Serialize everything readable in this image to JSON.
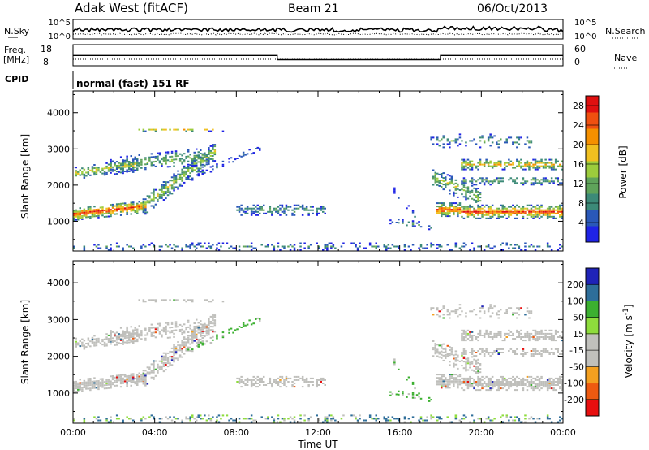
{
  "header": {
    "station": "Adak West (fitACF)",
    "beam": "Beam 21",
    "date": "06/Oct/2013"
  },
  "strip_labels": {
    "nsky": "N.Sky",
    "nsearch": "N.Search",
    "freq_line1": "Freq.",
    "freq_line2": "[MHz]",
    "nave": "Nave",
    "cpid": "CPID",
    "cpid_value": "normal (fast) 151 RF"
  },
  "colors": {
    "power_scale": [
      "#1f23e6",
      "#2a58b8",
      "#3c8a78",
      "#5fa35a",
      "#9ccc3c",
      "#f0c020",
      "#f59000",
      "#f05010",
      "#e01010"
    ],
    "velocity_scale": [
      "#e80f0f",
      "#ee5a10",
      "#f4a020",
      "#c0c0bc",
      "#c0c0bc",
      "#8edc3c",
      "#3cb030",
      "#2e6e9a",
      "#1f23b8"
    ],
    "ground_scatter": "#bfbfbb"
  },
  "chart_data": [
    {
      "type": "line",
      "panel": "noise",
      "title": "",
      "ylabel": "N.Sky",
      "yticks": [
        "10^5",
        "10^0"
      ],
      "yticks_right": [
        "10^5",
        "10^0"
      ],
      "series": [
        {
          "name": "N.Sky",
          "style": "solid"
        },
        {
          "name": "N.Search",
          "style": "dotted"
        }
      ]
    },
    {
      "type": "line",
      "panel": "frequency",
      "ylabel": "Freq. [MHz]",
      "yticks": [
        "18",
        "8"
      ],
      "yticks_right": [
        "60",
        "0"
      ],
      "x": [
        "00:00",
        "10:00",
        "10:00",
        "18:00",
        "18:00",
        "24:00"
      ],
      "series": [
        {
          "name": "Freq.",
          "values": [
            12.9,
            12.9,
            10.9,
            10.9,
            12.9,
            12.9
          ]
        },
        {
          "name": "Nave",
          "style": "dotted"
        }
      ]
    },
    {
      "type": "heatmap",
      "panel": "power",
      "ylabel": "Slant Range [km]",
      "yticks": [
        "1000",
        "2000",
        "3000",
        "4000"
      ],
      "ylim": [
        180,
        4600
      ],
      "xlim": [
        "00:00",
        "24:00"
      ],
      "colorbar": {
        "label": "Power [dB]",
        "ticks": [
          "4",
          "8",
          "12",
          "16",
          "20",
          "24",
          "28"
        ],
        "range": [
          0,
          30
        ]
      }
    },
    {
      "type": "heatmap",
      "panel": "velocity",
      "ylabel": "Slant Range [km]",
      "yticks": [
        "1000",
        "2000",
        "3000",
        "4000"
      ],
      "ylim": [
        180,
        4600
      ],
      "xlim": [
        "00:00",
        "24:00"
      ],
      "xlabel": "Time UT",
      "xticks": [
        "00:00",
        "04:00",
        "08:00",
        "12:00",
        "16:00",
        "20:00",
        "00:00"
      ],
      "colorbar": {
        "label": "Velocity [m s^-1]",
        "ticks": [
          "200",
          "100",
          "50",
          "15",
          "-15",
          "-50",
          "-100",
          "-200"
        ]
      }
    }
  ]
}
